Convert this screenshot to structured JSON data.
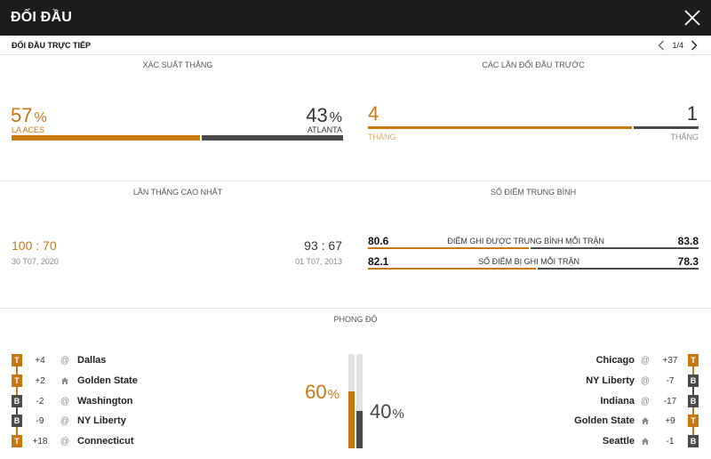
{
  "header": {
    "title": "ĐỐI ĐẦU"
  },
  "subbar": {
    "title": "ĐỐI ĐẦU TRỰC TIẾP",
    "page": "1/4"
  },
  "win_probability": {
    "title": "XÁC SUẤT THẮNG",
    "home": {
      "team": "LA ACES",
      "value": 57,
      "pct": "57",
      "sym": "%"
    },
    "away": {
      "team": "ATLANTA",
      "value": 43,
      "pct": "43",
      "sym": "%"
    }
  },
  "head_to_head": {
    "title": "CÁC LẦN ĐỐI ĐẦU TRƯỚC",
    "home": {
      "wins": "4",
      "label": "THẮNG",
      "value": 4
    },
    "away": {
      "wins": "1",
      "label": "THẮNG",
      "value": 1
    }
  },
  "biggest_win": {
    "title": "LẦN THẮNG CAO NHẤT",
    "home": {
      "score": "100 : 70",
      "date": "30 T07, 2020"
    },
    "away": {
      "score": "93 : 67",
      "date": "01 T07, 2013"
    }
  },
  "avg_points": {
    "title": "SỐ ĐIỂM TRUNG BÌNH",
    "rows": [
      {
        "label": "ĐIỂM GHI ĐƯỢC TRUNG BÌNH MỖI TRẬN",
        "home": "80.6",
        "away": "83.8",
        "home_value": 80.6,
        "away_value": 83.8
      },
      {
        "label": "SỐ ĐIỂM BỊ GHI MỖI TRẬN",
        "home": "82.1",
        "away": "78.3",
        "home_value": 82.1,
        "away_value": 78.3
      }
    ]
  },
  "form": {
    "title": "PHONG ĐỘ",
    "home_pct": "60",
    "away_pct": "40",
    "sym": "%",
    "home_value": 60,
    "away_value": 40,
    "home": [
      {
        "result": "T",
        "diff": "+4",
        "venue": "@",
        "opponent": "Dallas"
      },
      {
        "result": "T",
        "diff": "+2",
        "venue": "home-icon",
        "opponent": "Golden State"
      },
      {
        "result": "B",
        "diff": "-2",
        "venue": "@",
        "opponent": "Washington"
      },
      {
        "result": "B",
        "diff": "-9",
        "venue": "@",
        "opponent": "NY Liberty"
      },
      {
        "result": "T",
        "diff": "+18",
        "venue": "@",
        "opponent": "Connecticut"
      }
    ],
    "away": [
      {
        "result": "T",
        "diff": "+37",
        "venue": "@",
        "opponent": "Chicago"
      },
      {
        "result": "B",
        "diff": "-7",
        "venue": "@",
        "opponent": "NY Liberty"
      },
      {
        "result": "B",
        "diff": "-17",
        "venue": "@",
        "opponent": "Indiana"
      },
      {
        "result": "T",
        "diff": "+9",
        "venue": "home-icon",
        "opponent": "Golden State"
      },
      {
        "result": "B",
        "diff": "-1",
        "venue": "home-icon",
        "opponent": "Seattle"
      }
    ]
  },
  "colors": {
    "accent": "#c8780f",
    "dark": "#4a4a4a",
    "header": "#1c1c1c"
  }
}
